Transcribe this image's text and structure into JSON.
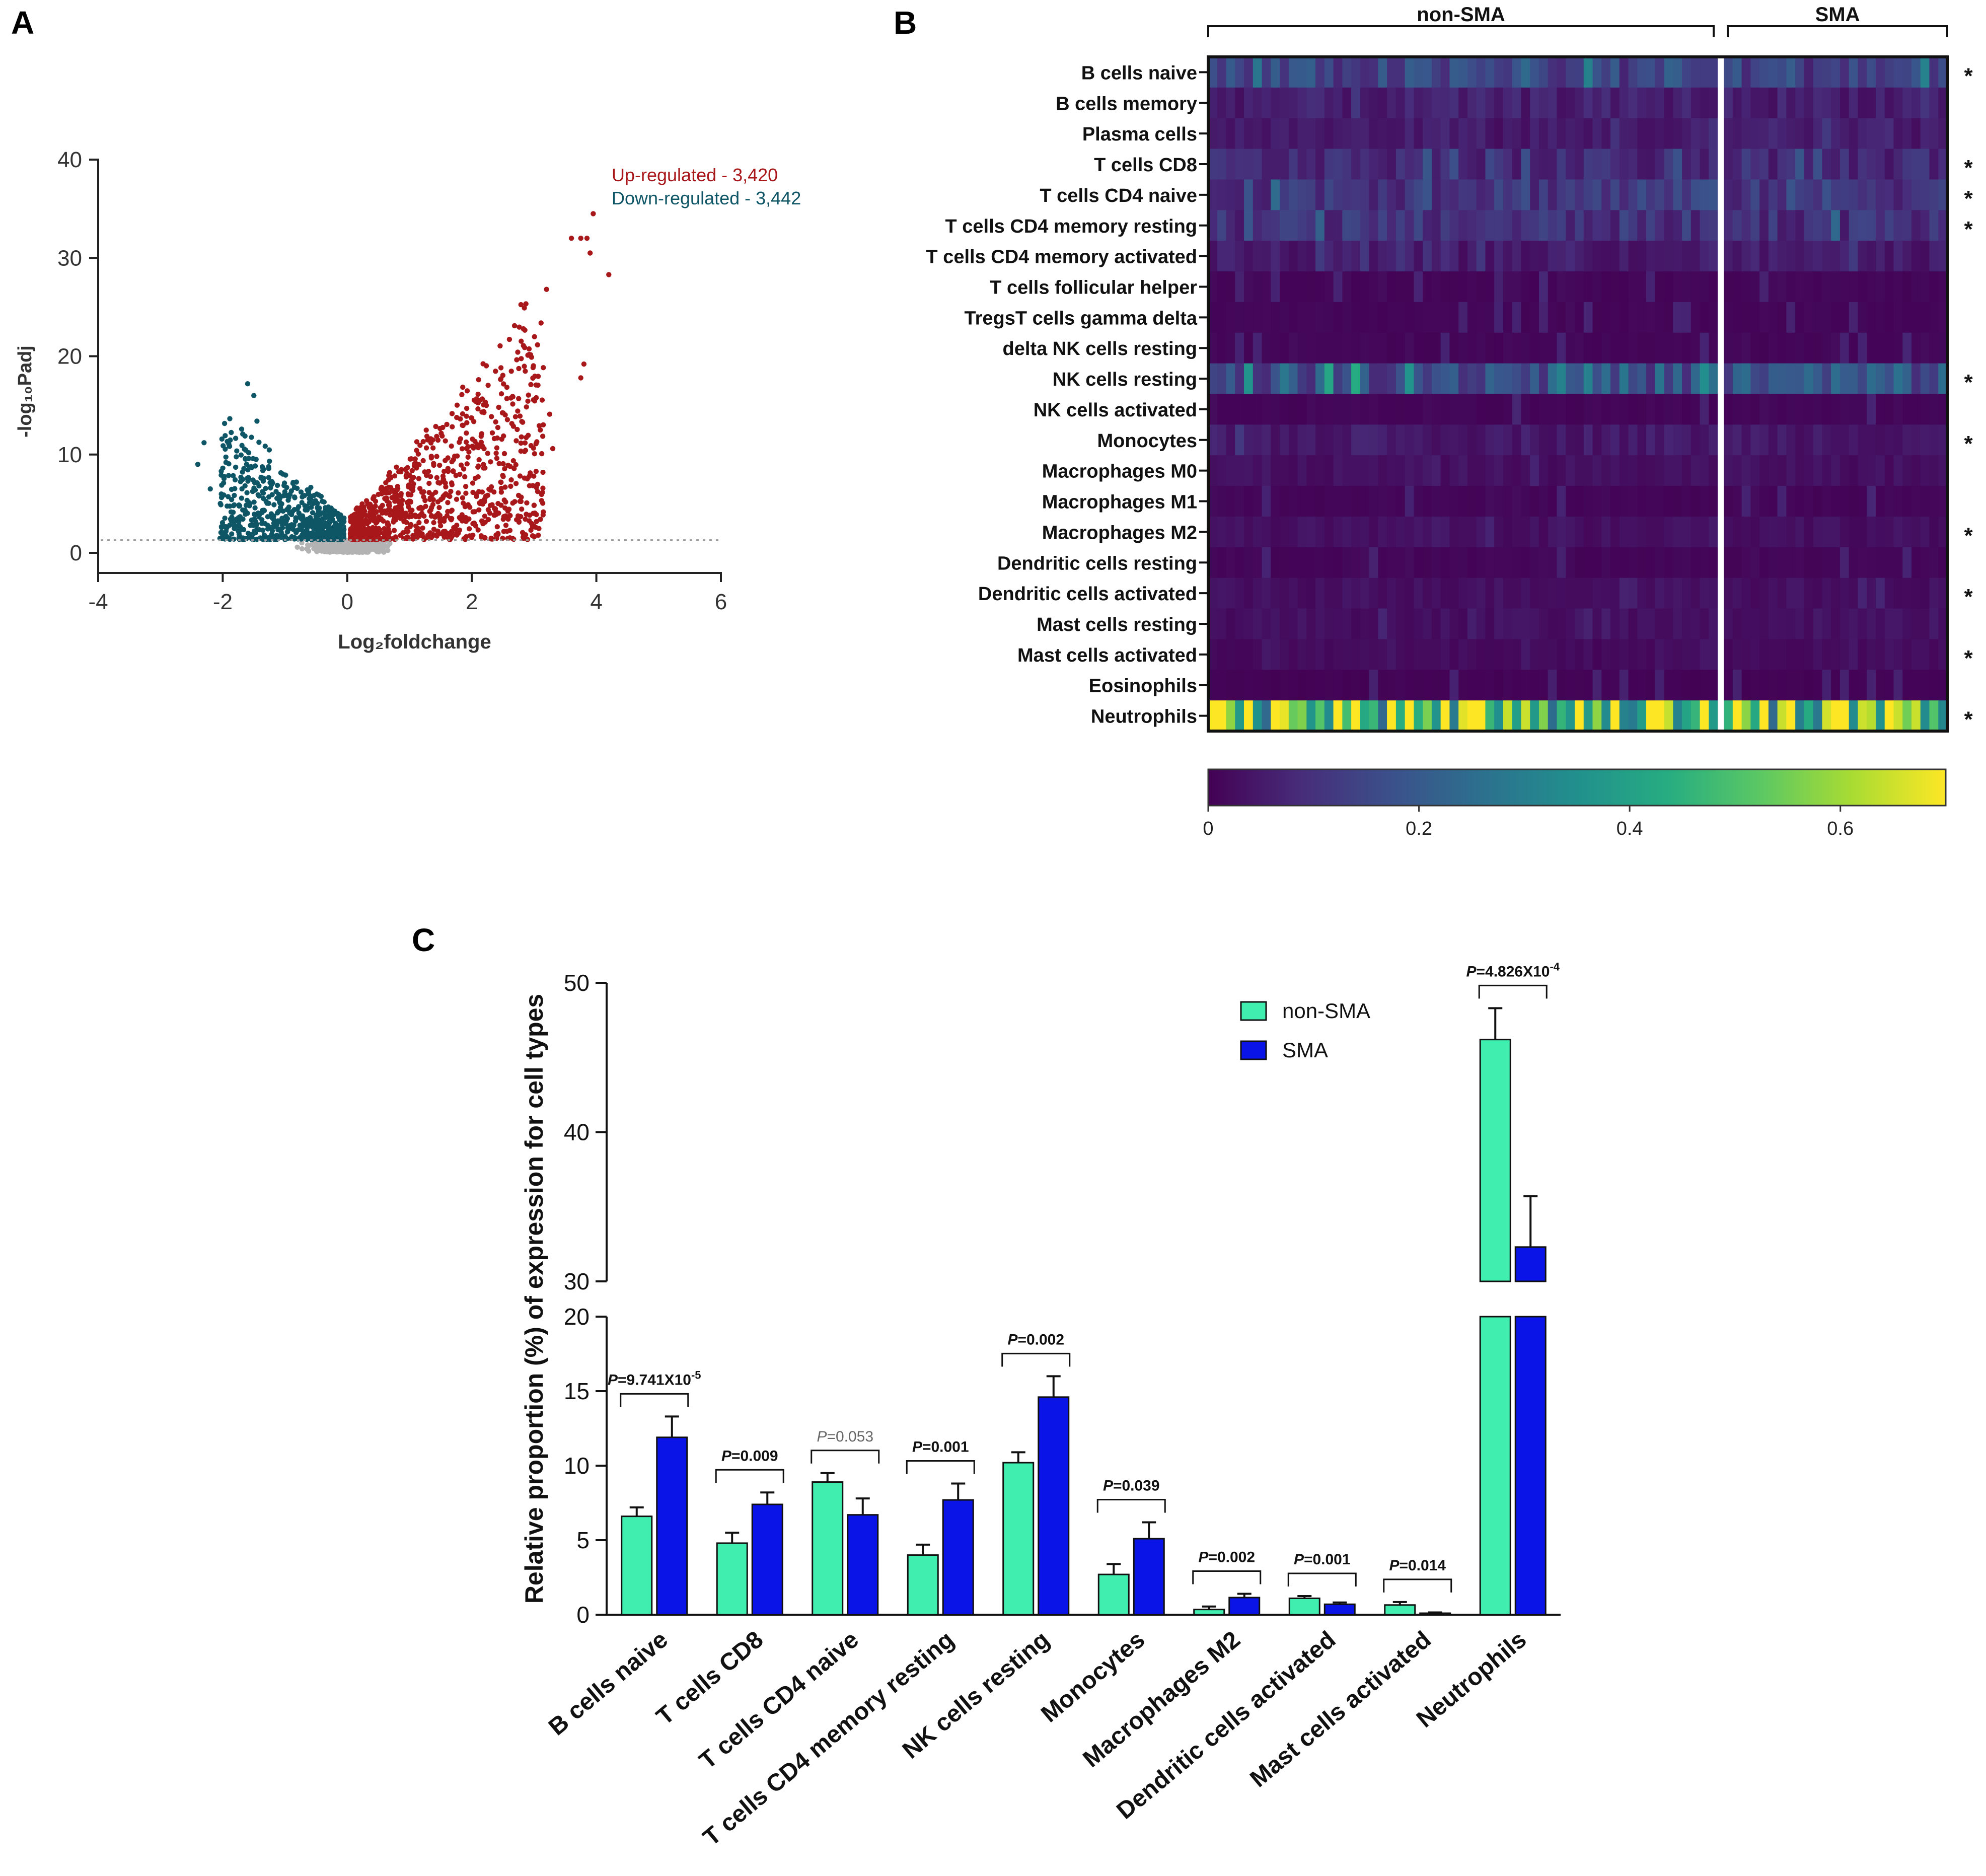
{
  "panels": {
    "a": "A",
    "b": "B",
    "c": "C"
  },
  "colors": {
    "up": "#a8181b",
    "down": "#0e5566",
    "ns": "#b3b3b3",
    "non_sma": "#40eeb0",
    "sma": "#0a14e6",
    "viridis": [
      "#440154",
      "#472c7a",
      "#3b518b",
      "#2c718e",
      "#21908d",
      "#27ad81",
      "#5cc863",
      "#aadc32",
      "#fde725"
    ]
  },
  "chart_data": [
    {
      "id": "volcano",
      "type": "scatter",
      "title": "",
      "xlabel": "Log₂foldchange",
      "ylabel": "-log₁₀Padj",
      "xlim": [
        -4,
        6
      ],
      "ylim": [
        0,
        40
      ],
      "xticks": [
        "-4",
        "-2",
        "0",
        "2",
        "4",
        "6"
      ],
      "yticks": [
        "0",
        "10",
        "20",
        "30",
        "40"
      ],
      "threshold_padj_log": 1.3,
      "legend": {
        "up": "Up-regulated - 3,420",
        "down": "Down-regulated - 3,442"
      },
      "counts": {
        "up": 3420,
        "down": 3442
      },
      "outliers_up": [
        [
          3.6,
          32
        ],
        [
          3.75,
          32
        ],
        [
          3.85,
          32
        ],
        [
          3.95,
          34.5
        ],
        [
          3.9,
          30.5
        ],
        [
          4.2,
          28.3
        ],
        [
          3.8,
          19.2
        ],
        [
          3.75,
          17.8
        ],
        [
          3.3,
          10.6
        ],
        [
          3.1,
          12.5
        ],
        [
          3.25,
          14.1
        ],
        [
          3.2,
          26.8
        ],
        [
          2.9,
          20.1
        ]
      ],
      "outliers_down": [
        [
          -1.6,
          17.2
        ],
        [
          -2.3,
          11.2
        ],
        [
          -2.4,
          9.0
        ],
        [
          -1.5,
          16.0
        ],
        [
          -1.45,
          13.4
        ],
        [
          -2.2,
          6.5
        ]
      ]
    },
    {
      "id": "heatmap",
      "type": "heatmap",
      "groups": [
        {
          "name": "non-SMA",
          "n": 57
        },
        {
          "name": "SMA",
          "n": 25
        }
      ],
      "rows": [
        "B cells naive",
        "B cells memory",
        "Plasma cells",
        "T cells CD8",
        "T cells CD4 naive",
        "T cells CD4 memory resting",
        "T cells CD4 memory activated",
        "T cells follicular helper",
        "TregsT cells gamma delta",
        "delta NK cells resting",
        "NK cells resting",
        "NK cells activated",
        "Monocytes",
        "Macrophages M0",
        "Macrophages M1",
        "Macrophages M2",
        "Dendritic cells resting",
        "Dendritic cells activated",
        "Mast cells resting",
        "Mast cells activated",
        "Eosinophils",
        "Neutrophils"
      ],
      "row_means": [
        0.14,
        0.06,
        0.05,
        0.08,
        0.12,
        0.1,
        0.05,
        0.01,
        0.01,
        0.01,
        0.18,
        0.01,
        0.05,
        0.03,
        0.01,
        0.03,
        0.01,
        0.03,
        0.03,
        0.02,
        0.005,
        0.52
      ],
      "significant": [
        true,
        false,
        false,
        true,
        true,
        true,
        false,
        false,
        false,
        false,
        true,
        false,
        true,
        false,
        false,
        true,
        false,
        true,
        false,
        true,
        false,
        true
      ],
      "star": "*",
      "colorbar": {
        "min": 0,
        "max": 0.7,
        "ticks": [
          "0",
          "0.2",
          "0.4",
          "0.6"
        ],
        "tick_values": [
          0,
          0.2,
          0.4,
          0.6
        ]
      }
    },
    {
      "id": "bars",
      "type": "bar",
      "ylabel": "Relative proportion (%) of expression for cell types",
      "categories": [
        "B cells naive",
        "T cells CD8",
        "T cells CD4 naive",
        "T cells CD4 memory resting",
        "NK cells resting",
        "Monocytes",
        "Macrophages M2",
        "Dendritic cells activated",
        "Mast cells activated",
        "Neutrophils"
      ],
      "series": [
        {
          "name": "non-SMA",
          "values": [
            6.6,
            4.8,
            8.9,
            4.0,
            10.2,
            2.7,
            0.35,
            1.1,
            0.65,
            46.2
          ],
          "errors": [
            0.6,
            0.7,
            0.6,
            0.7,
            0.7,
            0.7,
            0.2,
            0.15,
            0.2,
            2.1
          ]
        },
        {
          "name": "SMA",
          "values": [
            11.9,
            7.4,
            6.7,
            7.7,
            14.6,
            5.1,
            1.15,
            0.7,
            0.1,
            32.3
          ],
          "errors": [
            1.4,
            0.8,
            1.1,
            1.1,
            1.4,
            1.1,
            0.25,
            0.12,
            0.05,
            3.4
          ]
        }
      ],
      "pvalues": [
        {
          "prefix": "=9.741X10",
          "exp": "-5",
          "grey": false
        },
        {
          "prefix": "=0.009",
          "exp": "",
          "grey": false
        },
        {
          "prefix": "=0.053",
          "exp": "",
          "grey": true
        },
        {
          "prefix": "=0.001",
          "exp": "",
          "grey": false
        },
        {
          "prefix": "=0.002",
          "exp": "",
          "grey": false
        },
        {
          "prefix": "=0.039",
          "exp": "",
          "grey": false
        },
        {
          "prefix": "=0.002",
          "exp": "",
          "grey": false
        },
        {
          "prefix": "=0.001",
          "exp": "",
          "grey": false
        },
        {
          "prefix": "=0.014",
          "exp": "",
          "grey": false
        },
        {
          "prefix": "=4.826X10",
          "exp": "-4",
          "grey": false
        }
      ],
      "p_symbol": "P",
      "lower_ylim": [
        0,
        20
      ],
      "upper_ylim": [
        30,
        50
      ],
      "lower_yticks": [
        "0",
        "5",
        "10",
        "15",
        "20"
      ],
      "upper_yticks": [
        "30",
        "40",
        "50"
      ],
      "legend": [
        "non-SMA",
        "SMA"
      ]
    }
  ]
}
